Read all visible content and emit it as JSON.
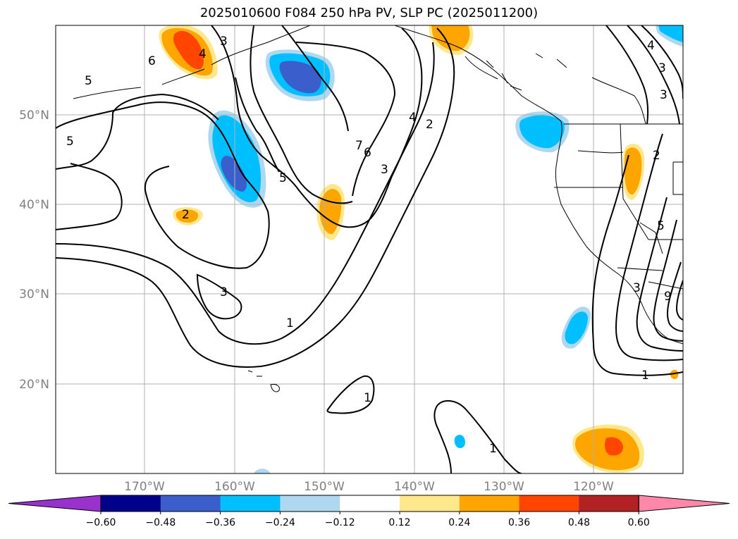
{
  "title": "2025010600 F084 250 hPa PV, SLP PC (2025011200)",
  "lat_labels": [
    "50°N",
    "40°N",
    "30°N",
    "20°N"
  ],
  "lon_labels": [
    "170°W",
    "160°W",
    "150°W",
    "140°W",
    "130°W",
    "120°W"
  ],
  "colorbar": {
    "colors": [
      "#9932cc",
      "#00008b",
      "#3a5fcd",
      "#00bfff",
      "#add8f0",
      "#ffffff",
      "#ffe88c",
      "#ffa500",
      "#ff4500",
      "#b22222",
      "#ff88aa"
    ],
    "tick_labels": [
      "−0.60",
      "−0.48",
      "−0.36",
      "−0.24",
      "−0.12",
      "0.12",
      "0.24",
      "0.36",
      "0.48",
      "0.60"
    ]
  },
  "contour_labels": [
    "6",
    "3",
    "4",
    "5",
    "5",
    "2",
    "5",
    "7",
    "6",
    "4",
    "2",
    "3",
    "3",
    "1",
    "1",
    "1",
    "1",
    "3",
    "2",
    "5",
    "3",
    "9",
    "4",
    "3"
  ]
}
